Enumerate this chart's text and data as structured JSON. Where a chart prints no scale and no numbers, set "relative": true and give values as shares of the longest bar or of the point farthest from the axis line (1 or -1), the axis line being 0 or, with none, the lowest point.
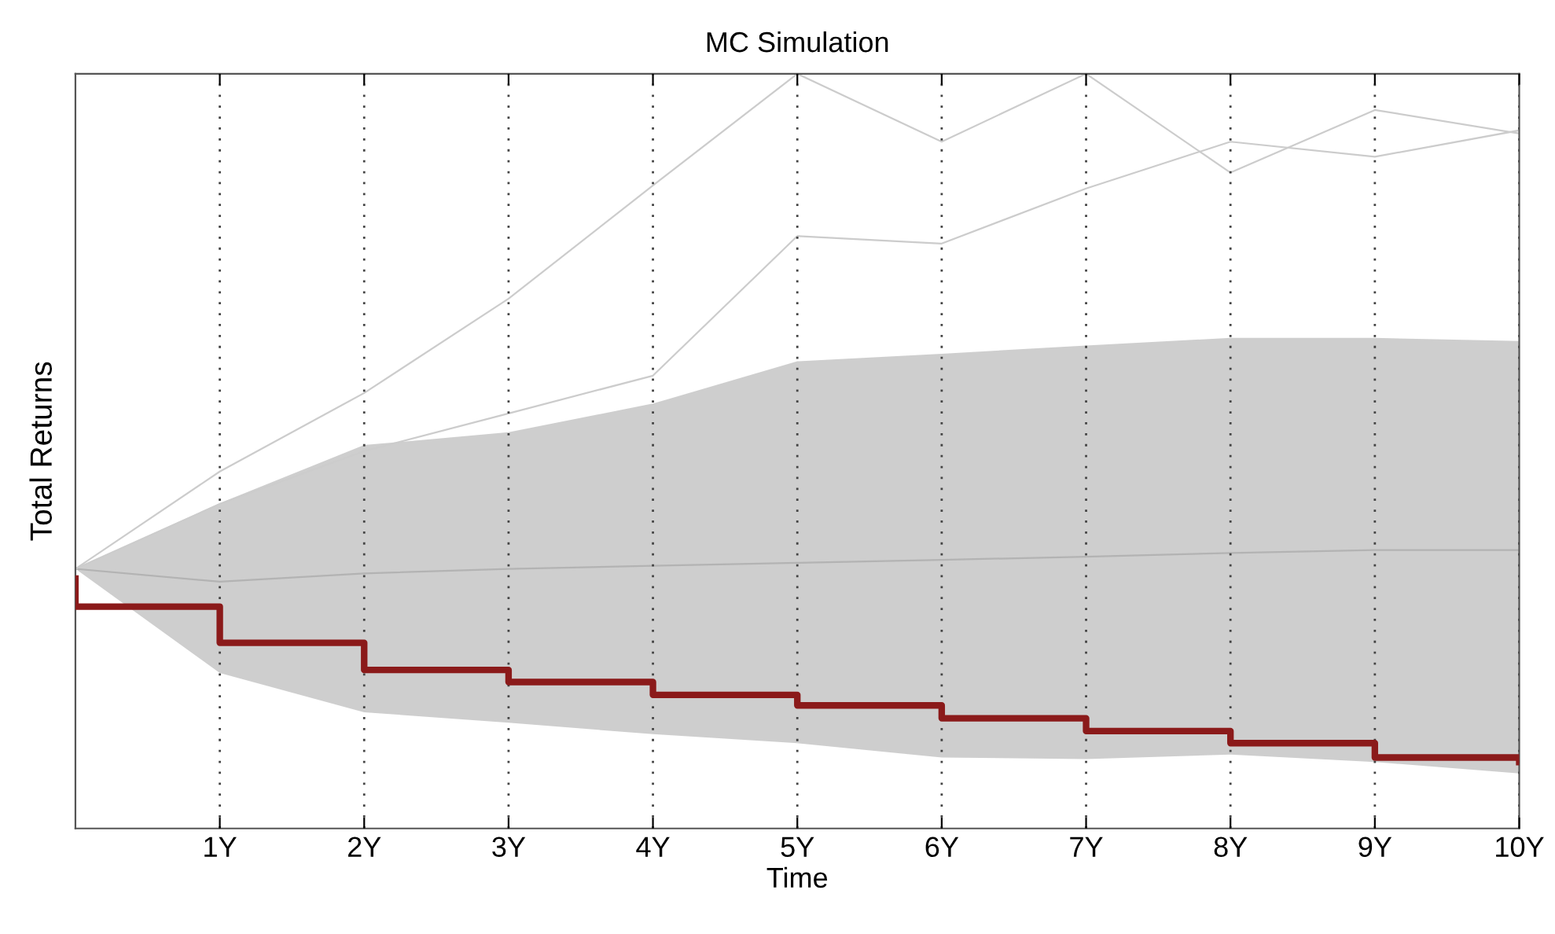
{
  "chart_data": {
    "type": "line",
    "title": "MC Simulation",
    "xlabel": "Time",
    "ylabel": "Total Returns",
    "relative": true,
    "x": [
      0,
      1,
      2,
      3,
      4,
      5,
      6,
      7,
      8,
      9,
      10
    ],
    "xlim": [
      0,
      10
    ],
    "xticks": [
      {
        "value": 1,
        "label": "1Y"
      },
      {
        "value": 2,
        "label": "2Y"
      },
      {
        "value": 3,
        "label": "3Y"
      },
      {
        "value": 4,
        "label": "4Y"
      },
      {
        "value": 5,
        "label": "5Y"
      },
      {
        "value": 6,
        "label": "6Y"
      },
      {
        "value": 7,
        "label": "7Y"
      },
      {
        "value": 8,
        "label": "8Y"
      },
      {
        "value": 9,
        "label": "9Y"
      },
      {
        "value": 10,
        "label": "10Y"
      }
    ],
    "grid": "x",
    "legend": false,
    "series": [
      {
        "color": "#b3b3b3",
        "values": [
          0.344,
          0.327,
          0.338,
          0.344,
          0.348,
          0.352,
          0.356,
          0.36,
          0.365,
          0.369,
          0.369
        ],
        "lower": [
          0.344,
          0.206,
          0.154,
          0.14,
          0.125,
          0.113,
          0.094,
          0.092,
          0.098,
          0.088,
          0.073
        ],
        "upper": [
          0.344,
          0.431,
          0.508,
          0.525,
          0.563,
          0.619,
          0.629,
          0.64,
          0.65,
          0.65,
          0.646
        ]
      },
      {
        "color": "#cccccc",
        "values": [
          0.344,
          0.473,
          0.577,
          0.702,
          0.852,
          1,
          0.91,
          1,
          0.869,
          0.952,
          0.921
        ]
      },
      {
        "color": "#cccccc",
        "values": [
          0.344,
          0.43,
          0.5,
          0.55,
          0.6,
          0.785,
          0.775,
          0.848,
          0.91,
          0.89,
          0.925
        ]
      },
      {
        "type": "step",
        "color": "#8b1a1a",
        "x": [
          0,
          0,
          1,
          2,
          3,
          4,
          5,
          6,
          7,
          8,
          9,
          10
        ],
        "values": [
          0.331,
          0.294,
          0.246,
          0.21,
          0.194,
          0.177,
          0.163,
          0.146,
          0.129,
          0.113,
          0.094,
          0.088
        ]
      }
    ]
  }
}
